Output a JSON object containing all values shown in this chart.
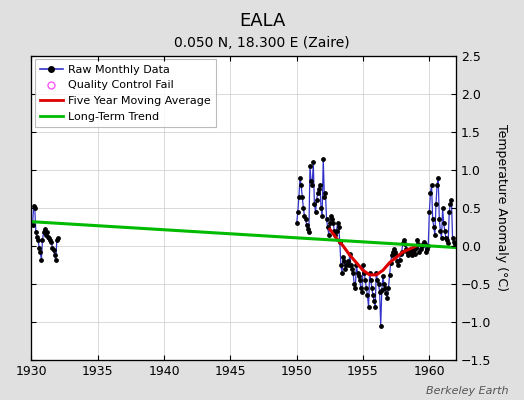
{
  "title": "EALA",
  "subtitle": "0.050 N, 18.300 E (Zaire)",
  "ylabel": "Temperature Anomaly (°C)",
  "watermark": "Berkeley Earth",
  "xlim": [
    1930,
    1962
  ],
  "ylim": [
    -1.5,
    2.5
  ],
  "xticks": [
    1930,
    1935,
    1940,
    1945,
    1950,
    1955,
    1960
  ],
  "yticks": [
    -1.5,
    -1.0,
    -0.5,
    0.0,
    0.5,
    1.0,
    1.5,
    2.0,
    2.5
  ],
  "background_color": "#e0e0e0",
  "plot_background": "#ffffff",
  "early_years": [
    1930.083,
    1930.167,
    1930.25,
    1930.333,
    1930.417,
    1930.5,
    1930.583,
    1930.667,
    1930.75,
    1930.833,
    1930.917,
    1931.0,
    1931.083,
    1931.167,
    1931.25,
    1931.333,
    1931.417,
    1931.5,
    1931.583,
    1931.667,
    1931.75,
    1931.833,
    1931.917,
    1932.0
  ],
  "early_vals": [
    0.28,
    0.52,
    0.5,
    0.18,
    0.12,
    0.08,
    -0.02,
    -0.08,
    -0.18,
    0.08,
    0.18,
    0.22,
    0.14,
    0.18,
    0.12,
    0.1,
    0.08,
    0.05,
    -0.02,
    -0.05,
    -0.12,
    -0.18,
    0.08,
    0.1
  ],
  "main_years": [
    1950.0,
    1950.083,
    1950.167,
    1950.25,
    1950.333,
    1950.417,
    1950.5,
    1950.583,
    1950.667,
    1950.75,
    1950.833,
    1950.917,
    1951.0,
    1951.083,
    1951.167,
    1951.25,
    1951.333,
    1951.417,
    1951.5,
    1951.583,
    1951.667,
    1951.75,
    1951.833,
    1951.917,
    1952.0,
    1952.083,
    1952.167,
    1952.25,
    1952.333,
    1952.417,
    1952.5,
    1952.583,
    1952.667,
    1952.75,
    1952.833,
    1952.917,
    1953.0,
    1953.083,
    1953.167,
    1953.25,
    1953.333,
    1953.417,
    1953.5,
    1953.583,
    1953.667,
    1953.75,
    1953.833,
    1953.917,
    1954.0,
    1954.083,
    1954.167,
    1954.25,
    1954.333,
    1954.417,
    1954.5,
    1954.583,
    1954.667,
    1954.75,
    1954.833,
    1954.917,
    1955.0,
    1955.083,
    1955.167,
    1955.25,
    1955.333,
    1955.417,
    1955.5,
    1955.583,
    1955.667,
    1955.75,
    1955.833,
    1955.917,
    1956.0,
    1956.083,
    1956.167,
    1956.25,
    1956.333,
    1956.417,
    1956.5,
    1956.583,
    1956.667,
    1956.75,
    1956.833,
    1956.917,
    1957.0,
    1957.083,
    1957.167,
    1957.25,
    1957.333,
    1957.417,
    1957.5,
    1957.583,
    1957.667,
    1957.75,
    1957.833,
    1957.917,
    1958.0,
    1958.083,
    1958.167,
    1958.25,
    1958.333,
    1958.417,
    1958.5,
    1958.583,
    1958.667,
    1958.75,
    1958.833,
    1958.917,
    1959.0,
    1959.083,
    1959.167,
    1959.25,
    1959.333,
    1959.417,
    1959.5,
    1959.583,
    1959.667,
    1959.75,
    1959.833,
    1959.917,
    1960.0,
    1960.083,
    1960.167,
    1960.25,
    1960.333,
    1960.417,
    1960.5,
    1960.583,
    1960.667,
    1960.75,
    1960.833,
    1960.917,
    1961.0,
    1961.083,
    1961.167,
    1961.25,
    1961.333,
    1961.417,
    1961.5,
    1961.583,
    1961.667,
    1961.75,
    1961.833,
    1961.917
  ],
  "main_vals": [
    0.3,
    0.45,
    0.65,
    0.9,
    0.8,
    0.65,
    0.5,
    0.4,
    0.35,
    0.28,
    0.22,
    0.18,
    1.05,
    0.85,
    0.8,
    1.1,
    0.55,
    0.45,
    0.6,
    0.7,
    0.75,
    0.8,
    0.5,
    0.4,
    1.15,
    0.65,
    0.7,
    0.35,
    0.25,
    0.15,
    0.3,
    0.4,
    0.35,
    0.3,
    0.2,
    0.15,
    0.2,
    0.3,
    0.25,
    0.05,
    -0.25,
    -0.35,
    -0.15,
    -0.2,
    -0.3,
    -0.25,
    -0.2,
    -0.25,
    -0.1,
    -0.25,
    -0.3,
    -0.35,
    -0.5,
    -0.55,
    -0.25,
    -0.35,
    -0.4,
    -0.45,
    -0.55,
    -0.6,
    -0.25,
    -0.35,
    -0.45,
    -0.55,
    -0.65,
    -0.8,
    -0.35,
    -0.45,
    -0.55,
    -0.65,
    -0.72,
    -0.8,
    -0.35,
    -0.45,
    -0.5,
    -0.6,
    -1.05,
    -0.58,
    -0.4,
    -0.5,
    -0.55,
    -0.62,
    -0.68,
    -0.55,
    -0.38,
    -0.22,
    -0.12,
    -0.08,
    -0.04,
    -0.08,
    -0.12,
    -0.2,
    -0.25,
    -0.18,
    -0.1,
    -0.08,
    0.04,
    0.08,
    0.03,
    -0.04,
    -0.08,
    -0.12,
    -0.08,
    -0.05,
    -0.12,
    -0.08,
    -0.05,
    -0.1,
    -0.02,
    0.08,
    0.03,
    -0.08,
    -0.04,
    0.0,
    0.02,
    0.05,
    0.02,
    -0.08,
    -0.04,
    0.0,
    0.45,
    0.7,
    0.8,
    0.35,
    0.25,
    0.15,
    0.55,
    0.8,
    0.9,
    0.35,
    0.2,
    0.1,
    0.5,
    0.3,
    0.2,
    0.1,
    0.08,
    0.04,
    0.45,
    0.55,
    0.6,
    0.1,
    0.05,
    0.02
  ],
  "ma_years": [
    1952.5,
    1953.0,
    1953.5,
    1954.0,
    1954.5,
    1955.0,
    1955.5,
    1956.0,
    1956.5,
    1957.0,
    1957.5,
    1958.0,
    1958.5,
    1959.0
  ],
  "ma_vals": [
    0.22,
    0.1,
    0.0,
    -0.12,
    -0.22,
    -0.32,
    -0.38,
    -0.38,
    -0.32,
    -0.22,
    -0.15,
    -0.08,
    -0.04,
    0.0
  ],
  "trend_years": [
    1930,
    1962
  ],
  "trend_vals": [
    0.32,
    -0.02
  ],
  "raw_color": "#3333cc",
  "moving_avg_color": "#dd0000",
  "trend_color": "#00bb00",
  "qc_color": "#ff55ff",
  "dot_color": "#000000",
  "dot_size": 6,
  "line_width": 0.9,
  "ma_linewidth": 2.2,
  "trend_linewidth": 2.2,
  "title_fontsize": 13,
  "subtitle_fontsize": 10,
  "tick_labelsize": 9,
  "ylabel_fontsize": 9,
  "legend_fontsize": 8,
  "watermark_fontsize": 8
}
